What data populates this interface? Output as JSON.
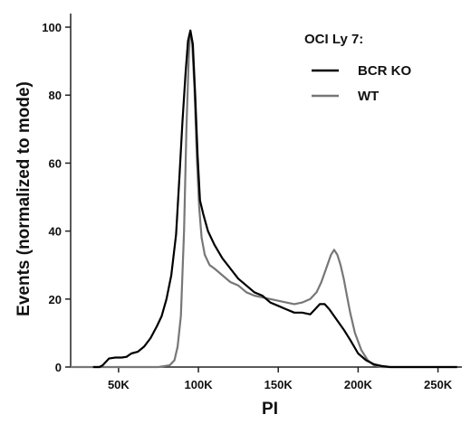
{
  "chart_data": {
    "type": "line",
    "title": "",
    "xlabel": "PI",
    "ylabel": "Events (normalized to mode)",
    "xlim": [
      20000,
      265000
    ],
    "ylim": [
      0,
      104
    ],
    "x_ticks": [
      {
        "value": 50000,
        "label": "50K"
      },
      {
        "value": 100000,
        "label": "100K"
      },
      {
        "value": 150000,
        "label": "150K"
      },
      {
        "value": 200000,
        "label": "200K"
      },
      {
        "value": 250000,
        "label": "250K"
      }
    ],
    "y_ticks": [
      {
        "value": 0,
        "label": "0"
      },
      {
        "value": 20,
        "label": "20"
      },
      {
        "value": 40,
        "label": "40"
      },
      {
        "value": 60,
        "label": "60"
      },
      {
        "value": 80,
        "label": "80"
      },
      {
        "value": 100,
        "label": "100"
      }
    ],
    "grid": false,
    "legend_title": "OCI Ly 7:",
    "legend_position": "top-right",
    "series": [
      {
        "name": "BCR KO",
        "color": "#000000",
        "x": [
          34000,
          38000,
          40000,
          42000,
          44000,
          48000,
          52000,
          55000,
          58000,
          62000,
          66000,
          70000,
          74000,
          77000,
          80000,
          83000,
          86000,
          88000,
          90000,
          92000,
          93500,
          95000,
          96500,
          98000,
          99500,
          101000,
          103000,
          106000,
          110000,
          115000,
          120000,
          125000,
          130000,
          135000,
          140000,
          145000,
          150000,
          155000,
          160000,
          165000,
          170000,
          173000,
          176000,
          179000,
          182000,
          185000,
          188000,
          191000,
          195000,
          200000,
          205000,
          210000,
          215000,
          220000,
          230000,
          240000,
          250000,
          262000
        ],
        "y": [
          0,
          0,
          0.5,
          1.5,
          2.5,
          2.8,
          2.8,
          3,
          4,
          4.5,
          6,
          8.5,
          12,
          15,
          20,
          27,
          39,
          55,
          72,
          87,
          96,
          99,
          95,
          80,
          62,
          49,
          45,
          40,
          36,
          32,
          29,
          26,
          24,
          22,
          21,
          19,
          18,
          17,
          16,
          16,
          15.5,
          17,
          18.5,
          18.5,
          17,
          15,
          13,
          11,
          8,
          4,
          2,
          0.8,
          0.3,
          0,
          0,
          0,
          0,
          0
        ]
      },
      {
        "name": "WT",
        "color": "#777777",
        "x": [
          20000,
          40000,
          60000,
          75000,
          82000,
          85000,
          87000,
          89000,
          91000,
          92500,
          94000,
          95000,
          96000,
          97500,
          99000,
          100500,
          102000,
          104000,
          107000,
          110000,
          115000,
          120000,
          125000,
          130000,
          135000,
          140000,
          145000,
          150000,
          155000,
          160000,
          165000,
          170000,
          174000,
          177000,
          180000,
          183000,
          185000,
          187000,
          189000,
          191000,
          193000,
          195000,
          198000,
          202000,
          206000,
          210000,
          215000,
          220000,
          230000,
          240000,
          250000,
          262000
        ],
        "y": [
          0,
          0,
          0,
          0,
          0.5,
          2,
          6,
          15,
          40,
          70,
          92,
          99,
          96,
          82,
          62,
          47,
          38,
          33,
          30,
          29,
          27,
          25,
          24,
          22,
          21,
          20.5,
          20,
          19.5,
          19,
          18.5,
          19,
          20,
          22,
          25,
          29,
          33,
          34.5,
          33,
          30,
          26,
          21,
          16,
          10,
          5,
          2,
          0.5,
          0,
          0,
          0,
          0,
          0,
          0
        ]
      }
    ]
  }
}
